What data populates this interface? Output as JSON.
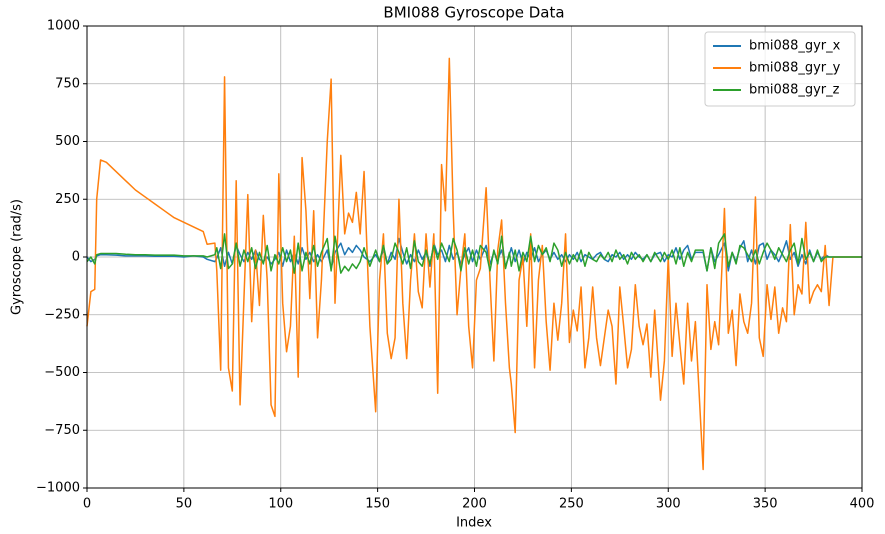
{
  "chart_data": {
    "type": "line",
    "title": "BMI088 Gyroscope Data",
    "xlabel": "Index",
    "ylabel": "Gyroscope (rad/s)",
    "xlim": [
      0,
      400
    ],
    "xticks": [
      0,
      50,
      100,
      150,
      200,
      250,
      300,
      350,
      400
    ],
    "ylim": [
      -1000,
      1000
    ],
    "yticks": [
      {
        "value": -1000,
        "label": "−1000"
      },
      {
        "value": -750,
        "label": "−750"
      },
      {
        "value": -500,
        "label": "−500"
      },
      {
        "value": -250,
        "label": "−250"
      },
      0,
      250,
      500,
      750,
      1000
    ],
    "grid": true,
    "legend": "upper right",
    "x": [
      0,
      2,
      4,
      5,
      7,
      10,
      15,
      20,
      25,
      30,
      35,
      40,
      45,
      50,
      55,
      60,
      62,
      66,
      67,
      69,
      71,
      73,
      75,
      77,
      79,
      81,
      83,
      85,
      87,
      89,
      91,
      93,
      95,
      97,
      99,
      101,
      103,
      105,
      107,
      109,
      111,
      113,
      115,
      117,
      119,
      121,
      124,
      126,
      128,
      131,
      133,
      135,
      137,
      139,
      141,
      143,
      146,
      149,
      151,
      153,
      155,
      157,
      159,
      161,
      163,
      165,
      167,
      169,
      171,
      173,
      175,
      177,
      179,
      181,
      183,
      185,
      187,
      189,
      191,
      193,
      195,
      197,
      199,
      201,
      203,
      206,
      208,
      210,
      212,
      214,
      216,
      218,
      219,
      221,
      223,
      225,
      227,
      229,
      231,
      233,
      235,
      237,
      239,
      241,
      243,
      245,
      247,
      249,
      251,
      253,
      255,
      257,
      259,
      261,
      263,
      265,
      267,
      269,
      271,
      273,
      275,
      277,
      279,
      281,
      283,
      285,
      287,
      289,
      291,
      293,
      296,
      298,
      300,
      302,
      304,
      306,
      308,
      310,
      312,
      314,
      318,
      320,
      322,
      324,
      326,
      329,
      331,
      333,
      335,
      337,
      339,
      341,
      343,
      345,
      347,
      349,
      351,
      353,
      355,
      357,
      359,
      361,
      363,
      365,
      367,
      369,
      371,
      373,
      375,
      377,
      379,
      381,
      383,
      385,
      400
    ],
    "series": [
      {
        "name": "bmi088_gyr_x",
        "color": "#1f77b4",
        "values": [
          0,
          -20,
          -10,
          5,
          10,
          10,
          8,
          5,
          5,
          5,
          3,
          3,
          3,
          0,
          5,
          0,
          -10,
          -20,
          -5,
          40,
          -40,
          20,
          -30,
          50,
          10,
          -20,
          20,
          -10,
          30,
          -10,
          -20,
          0,
          -30,
          -10,
          20,
          -40,
          30,
          -20,
          20,
          -30,
          40,
          -10,
          20,
          -20,
          10,
          -20,
          30,
          -50,
          20,
          60,
          10,
          40,
          20,
          50,
          30,
          0,
          -20,
          10,
          -20,
          30,
          -30,
          20,
          -10,
          80,
          20,
          -30,
          10,
          -20,
          30,
          -10,
          20,
          -40,
          60,
          10,
          30,
          -20,
          50,
          -10,
          20,
          -30,
          10,
          40,
          -20,
          30,
          -10,
          50,
          -30,
          20,
          -10,
          30,
          -40,
          10,
          40,
          -20,
          30,
          -30,
          20,
          -10,
          40,
          -20,
          10,
          30,
          -10,
          20,
          -10,
          10,
          -20,
          10,
          -10,
          20,
          -20,
          10,
          0,
          -10,
          10,
          20,
          -10,
          -20,
          10,
          0,
          20,
          -10,
          10,
          -10,
          20,
          0,
          -10,
          10,
          -20,
          10,
          20,
          -20,
          10,
          0,
          40,
          -10,
          30,
          50,
          -10,
          20,
          20,
          -60,
          40,
          -20,
          10,
          60,
          -60,
          20,
          -20,
          40,
          70,
          -20,
          30,
          -30,
          50,
          60,
          -10,
          30,
          10,
          -20,
          20,
          70,
          -10,
          20,
          -40,
          10,
          -30,
          30,
          -20,
          20,
          -10,
          10,
          0,
          0,
          0
        ]
      },
      {
        "name": "bmi088_gyr_y",
        "color": "#ff7f0e",
        "values": [
          -300,
          -150,
          -140,
          250,
          420,
          410,
          370,
          330,
          290,
          260,
          230,
          200,
          170,
          150,
          130,
          110,
          55,
          60,
          -60,
          -490,
          780,
          -480,
          -580,
          330,
          -640,
          -180,
          270,
          -280,
          30,
          -210,
          180,
          -100,
          -640,
          -690,
          360,
          -200,
          -410,
          -300,
          90,
          -520,
          430,
          200,
          -180,
          200,
          -350,
          -100,
          500,
          770,
          -200,
          440,
          100,
          190,
          150,
          280,
          100,
          370,
          -300,
          -670,
          -100,
          100,
          -330,
          -440,
          -350,
          250,
          -200,
          -440,
          -100,
          100,
          -150,
          -220,
          100,
          -130,
          100,
          -590,
          400,
          200,
          860,
          200,
          -250,
          -50,
          100,
          -300,
          -480,
          -100,
          -50,
          300,
          -100,
          -450,
          30,
          160,
          -200,
          -480,
          -550,
          -760,
          -100,
          0,
          -300,
          100,
          -480,
          -100,
          50,
          -280,
          -490,
          -200,
          -360,
          -200,
          100,
          -370,
          -230,
          -320,
          -130,
          -480,
          -350,
          -130,
          -350,
          -470,
          -350,
          -230,
          -300,
          -550,
          -130,
          -300,
          -480,
          -400,
          -120,
          -300,
          -380,
          -290,
          -520,
          -230,
          -620,
          -450,
          0,
          -430,
          -200,
          -380,
          -550,
          -200,
          -450,
          -280,
          -920,
          -120,
          -400,
          -280,
          -380,
          210,
          -330,
          -230,
          -470,
          -160,
          -280,
          -330,
          -200,
          260,
          -350,
          -430,
          -120,
          -270,
          -130,
          -330,
          -220,
          -280,
          140,
          -250,
          -120,
          -160,
          150,
          -200,
          -150,
          -120,
          -150,
          50,
          -210,
          0,
          0
        ]
      },
      {
        "name": "bmi088_gyr_z",
        "color": "#2ca02c",
        "values": [
          -20,
          0,
          -30,
          10,
          15,
          15,
          15,
          12,
          10,
          10,
          8,
          8,
          8,
          5,
          5,
          5,
          0,
          10,
          40,
          -50,
          100,
          -50,
          -30,
          60,
          -40,
          30,
          -20,
          40,
          -50,
          20,
          -30,
          50,
          -60,
          10,
          -30,
          40,
          -20,
          30,
          -70,
          60,
          -60,
          20,
          -30,
          50,
          -40,
          20,
          80,
          -60,
          90,
          -70,
          -40,
          -60,
          -30,
          -50,
          -20,
          40,
          -40,
          30,
          -20,
          50,
          -30,
          -10,
          60,
          20,
          -30,
          40,
          -50,
          70,
          -20,
          -40,
          30,
          -30,
          50,
          -10,
          60,
          20,
          -20,
          80,
          30,
          -60,
          40,
          -30,
          30,
          -40,
          50,
          20,
          -60,
          30,
          -30,
          90,
          -50,
          20,
          -40,
          30,
          -60,
          20,
          -20,
          90,
          -20,
          50,
          10,
          40,
          -20,
          60,
          30,
          -40,
          20,
          -30,
          10,
          -20,
          30,
          -40,
          20,
          -10,
          -20,
          10,
          -10,
          20,
          -20,
          30,
          -10,
          10,
          -30,
          20,
          -10,
          10,
          -20,
          10,
          -20,
          20,
          -20,
          20,
          -10,
          30,
          -30,
          40,
          -40,
          20,
          -20,
          30,
          30,
          -60,
          40,
          -50,
          60,
          100,
          -40,
          20,
          -30,
          50,
          40,
          10,
          -20,
          30,
          -30,
          20,
          60,
          30,
          -10,
          40,
          10,
          -20,
          30,
          60,
          -30,
          80,
          -10,
          20,
          -20,
          30,
          -20,
          0,
          0,
          0,
          0
        ]
      }
    ]
  }
}
